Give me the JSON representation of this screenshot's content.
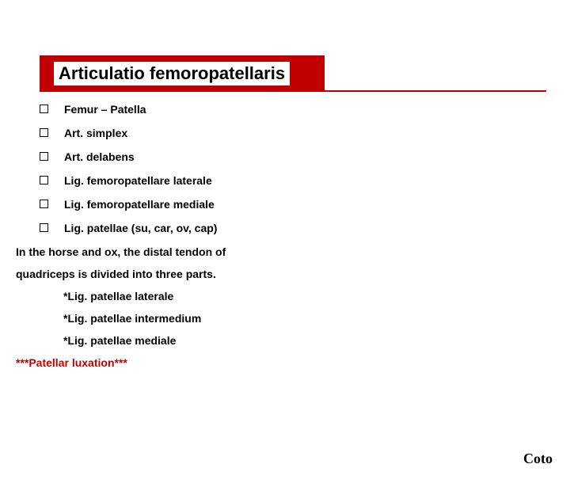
{
  "colors": {
    "accent": "#c00000",
    "background": "#ffffff",
    "text": "#000000"
  },
  "title": "Articulatio femoropatellaris",
  "bullets": [
    "Femur – Patella",
    "Art. simplex",
    "Art. delabens",
    "Lig. femoropatellare laterale",
    "Lig. femoropatellare mediale",
    "Lig. patellae (su, car, ov, cap)"
  ],
  "body": {
    "line1": "In the horse and ox, the distal tendon of",
    "line2": "quadriceps is divided into three parts."
  },
  "sublist": [
    "*Lig. patellae laterale",
    "*Lig. patellae intermedium",
    "*Lig. patellae mediale"
  ],
  "highlight": "***Patellar luxation***",
  "footer": "Coto"
}
